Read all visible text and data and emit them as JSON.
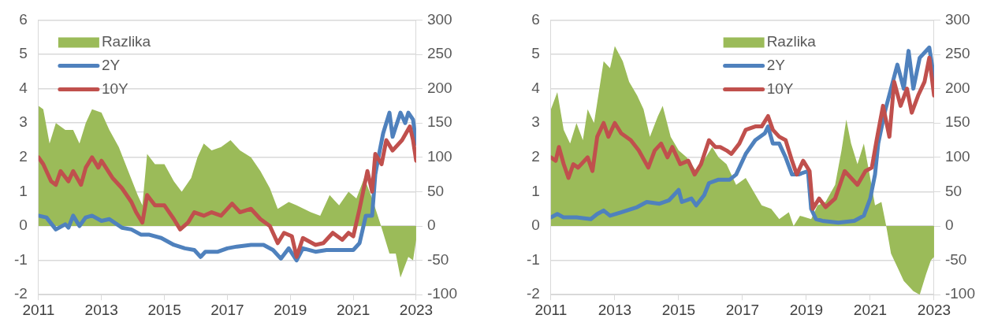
{
  "chart_data": [
    {
      "type": "line",
      "legend": "top left",
      "grid": "y",
      "xlim": [
        2011,
        2023
      ],
      "xticks": [
        2011,
        2013,
        2015,
        2017,
        2019,
        2021,
        2023
      ],
      "ylim": [
        -2,
        6
      ],
      "yticks": [
        -2,
        -1,
        0,
        1,
        2,
        3,
        4,
        5,
        6
      ],
      "y2lim": [
        -100,
        300
      ],
      "y2ticks": [
        -100,
        -50,
        0,
        50,
        100,
        150,
        200,
        250,
        300
      ],
      "series": [
        {
          "name": "Razlika",
          "type": "area",
          "axis": "y2",
          "color": "#9bbb59",
          "x": [
            2011.0,
            2011.15,
            2011.35,
            2011.55,
            2011.85,
            2012.1,
            2012.3,
            2012.5,
            2012.7,
            2013.0,
            2013.25,
            2013.55,
            2013.85,
            2014.15,
            2014.3,
            2014.45,
            2014.7,
            2015.0,
            2015.3,
            2015.55,
            2015.85,
            2016.05,
            2016.25,
            2016.5,
            2016.8,
            2017.1,
            2017.4,
            2017.75,
            2018.05,
            2018.35,
            2018.6,
            2018.95,
            2019.2,
            2019.65,
            2019.95,
            2020.25,
            2020.55,
            2020.85,
            2021.1,
            2021.35,
            2021.6,
            2021.85,
            2021.95,
            2022.15,
            2022.35,
            2022.5,
            2022.75,
            2022.9,
            2023.0
          ],
          "values": [
            175,
            170,
            120,
            150,
            140,
            140,
            120,
            150,
            170,
            165,
            140,
            115,
            80,
            45,
            30,
            105,
            90,
            90,
            65,
            50,
            70,
            100,
            120,
            110,
            115,
            125,
            110,
            100,
            80,
            55,
            25,
            35,
            30,
            20,
            15,
            45,
            30,
            50,
            40,
            70,
            40,
            5,
            -10,
            -40,
            -40,
            -75,
            -45,
            -50,
            -20
          ]
        },
        {
          "name": "2Y",
          "color": "#4f81bd",
          "x": [
            2011.0,
            2011.25,
            2011.55,
            2011.85,
            2011.95,
            2012.1,
            2012.3,
            2012.5,
            2012.7,
            2013.0,
            2013.25,
            2013.65,
            2013.95,
            2014.25,
            2014.5,
            2014.9,
            2015.3,
            2015.65,
            2015.95,
            2016.15,
            2016.3,
            2016.7,
            2017.0,
            2017.3,
            2017.75,
            2018.15,
            2018.45,
            2018.7,
            2018.95,
            2019.2,
            2019.4,
            2019.8,
            2020.15,
            2020.65,
            2021.0,
            2021.2,
            2021.4,
            2021.6,
            2021.7,
            2021.8,
            2021.95,
            2022.15,
            2022.25,
            2022.5,
            2022.65,
            2022.75,
            2022.9,
            2023.0
          ],
          "values": [
            0.3,
            0.25,
            -0.1,
            0.05,
            -0.05,
            0.3,
            0.0,
            0.25,
            0.3,
            0.15,
            0.2,
            -0.05,
            -0.1,
            -0.25,
            -0.25,
            -0.35,
            -0.55,
            -0.65,
            -0.7,
            -0.9,
            -0.75,
            -0.75,
            -0.65,
            -0.6,
            -0.55,
            -0.55,
            -0.7,
            -0.95,
            -0.65,
            -1.0,
            -0.65,
            -0.75,
            -0.7,
            -0.7,
            -0.7,
            -0.5,
            0.3,
            0.3,
            1.5,
            2.0,
            2.7,
            3.3,
            2.6,
            3.3,
            3.0,
            3.3,
            3.1,
            2.4
          ]
        },
        {
          "name": "10Y",
          "color": "#c0504d",
          "x": [
            2011.0,
            2011.15,
            2011.4,
            2011.55,
            2011.7,
            2011.95,
            2012.1,
            2012.35,
            2012.5,
            2012.7,
            2012.9,
            2013.0,
            2013.35,
            2013.65,
            2013.95,
            2014.1,
            2014.3,
            2014.45,
            2014.7,
            2015.0,
            2015.3,
            2015.5,
            2015.75,
            2015.95,
            2016.25,
            2016.5,
            2016.8,
            2017.15,
            2017.4,
            2017.75,
            2018.05,
            2018.35,
            2018.6,
            2018.8,
            2019.05,
            2019.2,
            2019.4,
            2019.8,
            2020.05,
            2020.35,
            2020.65,
            2020.85,
            2021.0,
            2021.2,
            2021.45,
            2021.6,
            2021.7,
            2021.9,
            2022.05,
            2022.25,
            2022.55,
            2022.8,
            2022.9,
            2023.0
          ],
          "values": [
            2.0,
            1.8,
            1.3,
            1.2,
            1.6,
            1.3,
            1.6,
            1.2,
            1.7,
            2.0,
            1.7,
            1.9,
            1.4,
            1.1,
            0.7,
            0.4,
            0.1,
            0.9,
            0.6,
            0.6,
            0.2,
            -0.1,
            0.1,
            0.4,
            0.3,
            0.4,
            0.3,
            0.65,
            0.4,
            0.5,
            0.2,
            0.0,
            -0.5,
            -0.2,
            -0.3,
            -0.9,
            -0.35,
            -0.55,
            -0.5,
            -0.2,
            -0.4,
            -0.2,
            -0.3,
            0.5,
            1.6,
            1.0,
            2.1,
            1.8,
            2.5,
            2.2,
            2.5,
            2.9,
            2.5,
            1.9
          ]
        }
      ]
    },
    {
      "type": "line",
      "legend": "top",
      "grid": "y",
      "xlim": [
        2011,
        2023
      ],
      "xticks": [
        2011,
        2013,
        2015,
        2017,
        2019,
        2021,
        2023
      ],
      "ylim": [
        -2,
        6
      ],
      "yticks": [
        -2,
        -1,
        0,
        1,
        2,
        3,
        4,
        5,
        6
      ],
      "y2lim": [
        -100,
        300
      ],
      "y2ticks": [
        -100,
        -50,
        0,
        50,
        100,
        150,
        200,
        250,
        300
      ],
      "series": [
        {
          "name": "Razlika",
          "type": "area",
          "axis": "y2",
          "color": "#9bbb59",
          "x": [
            2011.0,
            2011.2,
            2011.4,
            2011.6,
            2011.8,
            2012.0,
            2012.15,
            2012.35,
            2012.65,
            2012.85,
            2013.0,
            2013.25,
            2013.45,
            2013.7,
            2013.9,
            2014.1,
            2014.35,
            2014.5,
            2014.75,
            2015.0,
            2015.25,
            2015.55,
            2015.85,
            2016.05,
            2016.25,
            2016.5,
            2016.8,
            2017.1,
            2017.35,
            2017.6,
            2017.9,
            2018.15,
            2018.45,
            2018.6,
            2018.8,
            2019.15,
            2019.35,
            2019.6,
            2019.9,
            2020.1,
            2020.25,
            2020.4,
            2020.6,
            2020.8,
            2021.0,
            2021.15,
            2021.35,
            2021.5,
            2021.65,
            2021.85,
            2022.05,
            2022.35,
            2022.55,
            2022.75,
            2022.9,
            2023.0
          ],
          "values": [
            170,
            195,
            140,
            120,
            150,
            125,
            170,
            150,
            240,
            230,
            262,
            240,
            210,
            190,
            170,
            130,
            160,
            175,
            130,
            110,
            100,
            80,
            100,
            115,
            100,
            90,
            60,
            70,
            50,
            30,
            25,
            10,
            20,
            0,
            15,
            10,
            30,
            35,
            60,
            110,
            155,
            120,
            90,
            120,
            70,
            30,
            35,
            0,
            -40,
            -60,
            -80,
            -95,
            -100,
            -70,
            -50,
            -45
          ]
        },
        {
          "name": "2Y",
          "color": "#4f81bd",
          "x": [
            2011.0,
            2011.2,
            2011.4,
            2011.8,
            2012.25,
            2012.45,
            2012.65,
            2012.85,
            2013.2,
            2013.7,
            2014.0,
            2014.4,
            2014.7,
            2015.0,
            2015.1,
            2015.4,
            2015.55,
            2015.8,
            2015.95,
            2016.25,
            2016.6,
            2016.8,
            2017.1,
            2017.4,
            2017.7,
            2017.8,
            2017.95,
            2018.15,
            2018.35,
            2018.55,
            2018.75,
            2019.05,
            2019.15,
            2019.3,
            2019.5,
            2020.0,
            2020.5,
            2020.8,
            2021.0,
            2021.15,
            2021.25,
            2021.45,
            2021.65,
            2021.85,
            2022.05,
            2022.2,
            2022.35,
            2022.55,
            2022.85,
            2023.0
          ],
          "values": [
            0.25,
            0.35,
            0.25,
            0.25,
            0.2,
            0.35,
            0.45,
            0.3,
            0.4,
            0.55,
            0.7,
            0.65,
            0.75,
            1.05,
            0.7,
            0.8,
            0.6,
            0.9,
            1.25,
            1.35,
            1.35,
            1.5,
            2.1,
            2.5,
            2.7,
            2.9,
            2.4,
            2.4,
            2.0,
            1.5,
            1.5,
            1.6,
            0.5,
            0.2,
            0.15,
            0.1,
            0.15,
            0.3,
            0.8,
            1.5,
            2.4,
            3.3,
            4.0,
            4.7,
            4.0,
            5.1,
            4.0,
            4.9,
            5.2,
            4.3
          ]
        },
        {
          "name": "10Y",
          "color": "#c0504d",
          "x": [
            2011.0,
            2011.15,
            2011.25,
            2011.4,
            2011.55,
            2011.7,
            2011.85,
            2012.15,
            2012.3,
            2012.45,
            2012.65,
            2012.8,
            2013.0,
            2013.2,
            2013.5,
            2013.75,
            2014.05,
            2014.25,
            2014.45,
            2014.65,
            2014.8,
            2015.05,
            2015.3,
            2015.5,
            2015.7,
            2015.95,
            2016.15,
            2016.3,
            2016.5,
            2016.65,
            2016.9,
            2017.1,
            2017.4,
            2017.6,
            2017.8,
            2017.95,
            2018.15,
            2018.35,
            2018.55,
            2018.7,
            2018.9,
            2019.1,
            2019.2,
            2019.4,
            2019.6,
            2019.9,
            2020.2,
            2020.4,
            2020.6,
            2020.85,
            2021.05,
            2021.2,
            2021.4,
            2021.6,
            2021.75,
            2021.95,
            2022.15,
            2022.3,
            2022.5,
            2022.7,
            2022.85,
            2023.0
          ],
          "values": [
            2.0,
            1.9,
            2.3,
            1.8,
            1.4,
            1.8,
            1.7,
            2.0,
            1.6,
            2.6,
            3.0,
            2.6,
            3.0,
            2.7,
            2.5,
            2.2,
            1.7,
            2.2,
            2.4,
            2.0,
            2.3,
            1.8,
            1.9,
            1.5,
            1.8,
            2.5,
            2.3,
            2.3,
            2.2,
            2.1,
            2.4,
            2.8,
            2.9,
            2.9,
            3.2,
            2.8,
            2.6,
            2.5,
            1.9,
            1.5,
            1.9,
            1.6,
            0.5,
            0.8,
            0.55,
            0.8,
            1.6,
            1.4,
            1.2,
            1.6,
            1.7,
            2.5,
            3.5,
            2.6,
            4.2,
            3.5,
            4.0,
            3.3,
            3.8,
            4.2,
            4.9,
            3.8
          ]
        }
      ]
    }
  ]
}
